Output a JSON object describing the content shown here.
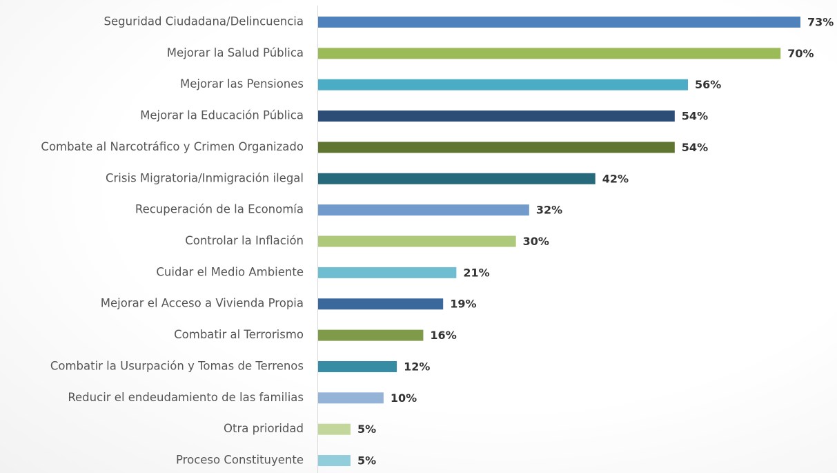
{
  "chart_data": {
    "type": "bar",
    "orientation": "horizontal",
    "categories": [
      "Seguridad Ciudadana/Delincuencia",
      "Mejorar la Salud Pública",
      "Mejorar las Pensiones",
      "Mejorar la Educación Pública",
      "Combate al Narcotráfico y Crimen Organizado",
      "Crisis Migratoria/Inmigración ilegal",
      "Recuperación de la Economía",
      "Controlar la Inflación",
      "Cuidar el Medio Ambiente",
      "Mejorar el Acceso a Vivienda Propia",
      "Combatir al Terrorismo",
      "Combatir la Usurpación y Tomas de Terrenos",
      "Reducir el endeudamiento de las familias",
      "Otra prioridad",
      "Proceso Constituyente"
    ],
    "values": [
      73,
      70,
      56,
      54,
      54,
      42,
      32,
      30,
      21,
      19,
      16,
      12,
      10,
      5,
      5
    ],
    "value_labels": [
      "73%",
      "70%",
      "56%",
      "54%",
      "54%",
      "42%",
      "32%",
      "30%",
      "21%",
      "19%",
      "16%",
      "12%",
      "10%",
      "5%",
      "5%"
    ],
    "colors": [
      "#4f81bd",
      "#9bbb59",
      "#4bacc6",
      "#2c4d75",
      "#5f7530",
      "#276a7c",
      "#729aca",
      "#afc97a",
      "#6fbdd1",
      "#3a679c",
      "#7f9a48",
      "#358ca3",
      "#95b3d7",
      "#c3d69b",
      "#92cddc"
    ]
  }
}
